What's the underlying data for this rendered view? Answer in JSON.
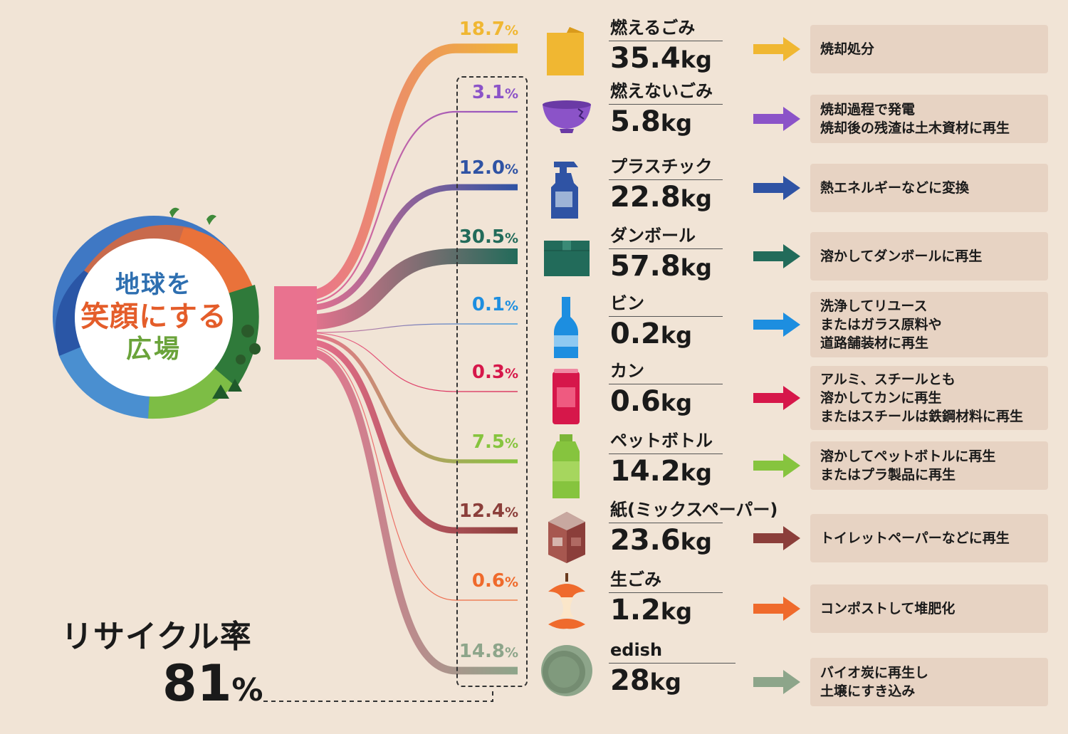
{
  "logo": {
    "line1": "地球を",
    "line2": "笑顔にする",
    "line3": "広場"
  },
  "recycle_rate": {
    "label": "リサイクル率",
    "value": "81",
    "unit": "%"
  },
  "colors": {
    "background": "#f1e4d6",
    "dest_box": "#e7d3c3",
    "source_flow": "#e9728f"
  },
  "chart_data": {
    "type": "sankey",
    "source": "地球を笑顔にする広場",
    "categories": [
      {
        "name": "燃えるごみ",
        "percent": "18.7",
        "weight": "35.4",
        "unit": "kg",
        "destination": "焼却処分",
        "color": "#f0b732",
        "icon": "burnable-waste-icon"
      },
      {
        "name": "燃えないごみ",
        "percent": "3.1",
        "weight": "5.8",
        "unit": "kg",
        "destination": "焼却過程で発電\n焼却後の残渣は土木資材に再生",
        "color": "#8b53c8",
        "icon": "ceramic-bowl-icon"
      },
      {
        "name": "プラスチック",
        "percent": "12.0",
        "weight": "22.8",
        "unit": "kg",
        "destination": "熱エネルギーなどに変換",
        "color": "#2f53a4",
        "icon": "spray-bottle-icon"
      },
      {
        "name": "ダンボール",
        "percent": "30.5",
        "weight": "57.8",
        "unit": "kg",
        "destination": "溶かしてダンボールに再生",
        "color": "#226b5a",
        "icon": "cardboard-box-icon"
      },
      {
        "name": "ビン",
        "percent": "0.1",
        "weight": "0.2",
        "unit": "kg",
        "destination": "洗浄してリユース\nまたはガラス原料や\n道路舗装材に再生",
        "color": "#1d8ee0",
        "icon": "glass-bottle-icon"
      },
      {
        "name": "カン",
        "percent": "0.3",
        "weight": "0.6",
        "unit": "kg",
        "destination": "アルミ、スチールとも\n溶かしてカンに再生\nまたはスチールは鉄鋼材料に再生",
        "color": "#d6174a",
        "icon": "can-icon"
      },
      {
        "name": "ペットボトル",
        "percent": "7.5",
        "weight": "14.2",
        "unit": "kg",
        "destination": "溶かしてペットボトルに再生\nまたはプラ製品に再生",
        "color": "#86c43e",
        "icon": "pet-bottle-icon"
      },
      {
        "name": "紙(ミックスペーパー)",
        "percent": "12.4",
        "weight": "23.6",
        "unit": "kg",
        "destination": "トイレットペーパーなどに再生",
        "color": "#8b3e3a",
        "icon": "milk-carton-icon"
      },
      {
        "name": "生ごみ",
        "percent": "0.6",
        "weight": "1.2",
        "unit": "kg",
        "destination": "コンポストして堆肥化",
        "color": "#ef6a2c",
        "icon": "apple-core-icon"
      },
      {
        "name": "edish",
        "percent": "14.8",
        "weight": "28",
        "unit": "kg",
        "destination": "バイオ炭に再生し\n土壌にすき込み",
        "color": "#8da58a",
        "icon": "edish-plate-icon"
      }
    ]
  }
}
